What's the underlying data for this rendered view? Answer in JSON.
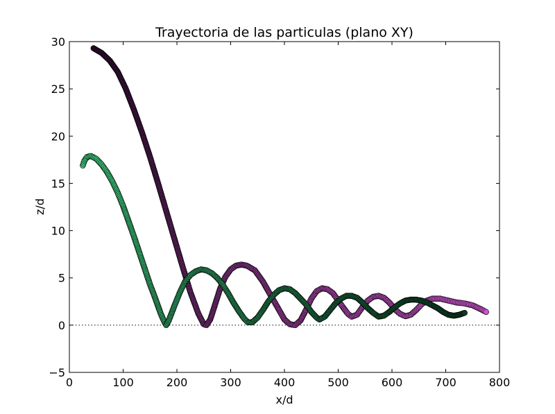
{
  "chart_data": {
    "type": "scatter",
    "title": "Trayectoria de las particulas (plano XY)",
    "xlabel": "x/d",
    "ylabel": "z/d",
    "xlim": [
      0,
      800
    ],
    "ylim": [
      -5,
      30
    ],
    "xticks": [
      0,
      100,
      200,
      300,
      400,
      500,
      600,
      700,
      800
    ],
    "yticks": [
      -5,
      0,
      5,
      10,
      15,
      20,
      25,
      30
    ],
    "xtick_labels": [
      "0",
      "100",
      "200",
      "300",
      "400",
      "500",
      "600",
      "700",
      "800"
    ],
    "ytick_labels": [
      "−5",
      "0",
      "5",
      "10",
      "15",
      "20",
      "25",
      "30"
    ],
    "grid": false,
    "reference_line": {
      "y": 0,
      "style": "dotted"
    },
    "series": [
      {
        "color_start": "#2e0d2e",
        "color_end": "#cc55cc",
        "points": [
          [
            45,
            29.3
          ],
          [
            60,
            28.8
          ],
          [
            75,
            28.0
          ],
          [
            90,
            26.8
          ],
          [
            105,
            25.0
          ],
          [
            120,
            22.8
          ],
          [
            135,
            20.4
          ],
          [
            150,
            17.8
          ],
          [
            165,
            15.0
          ],
          [
            180,
            12.1
          ],
          [
            195,
            9.2
          ],
          [
            210,
            6.3
          ],
          [
            225,
            3.5
          ],
          [
            240,
            1.2
          ],
          [
            250,
            0.1
          ],
          [
            255,
            0.0
          ],
          [
            262,
            0.6
          ],
          [
            270,
            2.0
          ],
          [
            280,
            3.8
          ],
          [
            290,
            5.1
          ],
          [
            300,
            5.9
          ],
          [
            310,
            6.3
          ],
          [
            320,
            6.4
          ],
          [
            330,
            6.3
          ],
          [
            345,
            5.8
          ],
          [
            360,
            4.6
          ],
          [
            375,
            3.1
          ],
          [
            390,
            1.6
          ],
          [
            400,
            0.6
          ],
          [
            410,
            0.1
          ],
          [
            420,
            0.0
          ],
          [
            430,
            0.5
          ],
          [
            440,
            1.6
          ],
          [
            450,
            2.8
          ],
          [
            460,
            3.6
          ],
          [
            470,
            3.9
          ],
          [
            480,
            3.8
          ],
          [
            490,
            3.4
          ],
          [
            500,
            2.6
          ],
          [
            510,
            1.8
          ],
          [
            518,
            1.2
          ],
          [
            525,
            0.9
          ],
          [
            535,
            1.1
          ],
          [
            545,
            1.9
          ],
          [
            555,
            2.6
          ],
          [
            565,
            3.0
          ],
          [
            575,
            3.1
          ],
          [
            585,
            2.9
          ],
          [
            595,
            2.4
          ],
          [
            605,
            1.7
          ],
          [
            615,
            1.2
          ],
          [
            625,
            0.95
          ],
          [
            635,
            1.1
          ],
          [
            645,
            1.6
          ],
          [
            655,
            2.2
          ],
          [
            665,
            2.6
          ],
          [
            675,
            2.8
          ],
          [
            690,
            2.8
          ],
          [
            705,
            2.6
          ],
          [
            720,
            2.4
          ],
          [
            735,
            2.3
          ],
          [
            750,
            2.1
          ],
          [
            765,
            1.7
          ],
          [
            775,
            1.4
          ]
        ]
      },
      {
        "color_start": "#40d080",
        "color_end": "#0c3a22",
        "points": [
          [
            25,
            16.9
          ],
          [
            28,
            17.4
          ],
          [
            33,
            17.8
          ],
          [
            40,
            17.9
          ],
          [
            50,
            17.6
          ],
          [
            60,
            17.0
          ],
          [
            70,
            16.2
          ],
          [
            80,
            15.2
          ],
          [
            90,
            14.0
          ],
          [
            100,
            12.6
          ],
          [
            110,
            11.0
          ],
          [
            120,
            9.4
          ],
          [
            130,
            7.7
          ],
          [
            140,
            6.0
          ],
          [
            150,
            4.3
          ],
          [
            160,
            2.8
          ],
          [
            170,
            1.2
          ],
          [
            177,
            0.3
          ],
          [
            180,
            0.0
          ],
          [
            185,
            0.5
          ],
          [
            195,
            2.0
          ],
          [
            205,
            3.4
          ],
          [
            215,
            4.6
          ],
          [
            225,
            5.3
          ],
          [
            235,
            5.7
          ],
          [
            245,
            5.9
          ],
          [
            255,
            5.8
          ],
          [
            265,
            5.5
          ],
          [
            275,
            5.0
          ],
          [
            285,
            4.3
          ],
          [
            295,
            3.4
          ],
          [
            305,
            2.4
          ],
          [
            315,
            1.5
          ],
          [
            325,
            0.7
          ],
          [
            332,
            0.3
          ],
          [
            340,
            0.3
          ],
          [
            350,
            0.8
          ],
          [
            360,
            1.6
          ],
          [
            370,
            2.5
          ],
          [
            380,
            3.2
          ],
          [
            390,
            3.7
          ],
          [
            400,
            3.9
          ],
          [
            410,
            3.8
          ],
          [
            420,
            3.4
          ],
          [
            430,
            2.8
          ],
          [
            440,
            2.2
          ],
          [
            450,
            1.4
          ],
          [
            460,
            0.8
          ],
          [
            465,
            0.6
          ],
          [
            475,
            0.9
          ],
          [
            485,
            1.6
          ],
          [
            495,
            2.3
          ],
          [
            505,
            2.8
          ],
          [
            515,
            3.1
          ],
          [
            525,
            3.1
          ],
          [
            535,
            2.9
          ],
          [
            545,
            2.4
          ],
          [
            555,
            1.8
          ],
          [
            565,
            1.3
          ],
          [
            575,
            0.9
          ],
          [
            585,
            1.0
          ],
          [
            595,
            1.4
          ],
          [
            605,
            1.9
          ],
          [
            615,
            2.3
          ],
          [
            625,
            2.6
          ],
          [
            635,
            2.7
          ],
          [
            645,
            2.7
          ],
          [
            655,
            2.6
          ],
          [
            665,
            2.4
          ],
          [
            675,
            2.1
          ],
          [
            685,
            1.8
          ],
          [
            695,
            1.4
          ],
          [
            705,
            1.1
          ],
          [
            715,
            1.0
          ],
          [
            725,
            1.1
          ],
          [
            735,
            1.3
          ]
        ]
      }
    ]
  }
}
